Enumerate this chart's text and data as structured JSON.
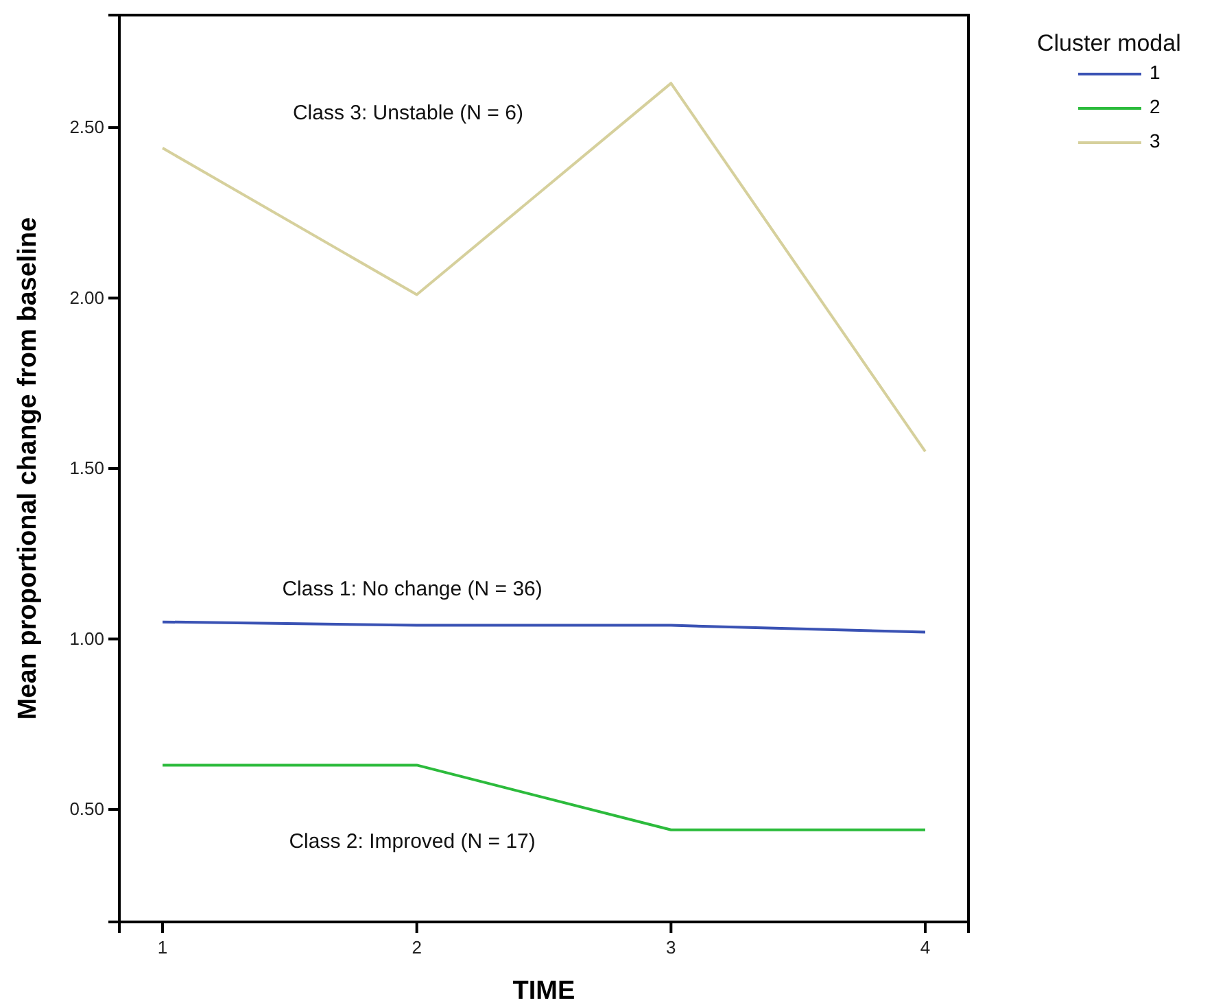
{
  "chart_data": {
    "type": "line",
    "xlabel": "TIME",
    "ylabel": "Mean proportional change from baseline",
    "legend_title": "Cluster modal",
    "legend": "top right",
    "x": [
      1,
      2,
      3,
      4
    ],
    "series": [
      {
        "name": "1",
        "color": "#3a52b4",
        "values": [
          1.05,
          1.04,
          1.04,
          1.02
        ]
      },
      {
        "name": "2",
        "color": "#2cbb3c",
        "values": [
          0.63,
          0.63,
          0.44,
          0.44
        ]
      },
      {
        "name": "3",
        "color": "#d6d09c",
        "values": [
          2.44,
          2.01,
          2.63,
          1.55
        ]
      }
    ],
    "xlim": [
      0.83,
      4.17
    ],
    "xticks": [
      1,
      2,
      3,
      4
    ],
    "ylim": [
      0.17,
      2.83
    ],
    "yticks": [
      {
        "value": 0.5,
        "label": "0.50"
      },
      {
        "value": 1,
        "label": "1.00"
      },
      {
        "value": 1.5,
        "label": "1.50"
      },
      {
        "value": 2,
        "label": "2.00"
      },
      {
        "value": 2.5,
        "label": "2.50"
      }
    ],
    "grid": false,
    "marker": "none",
    "line_style": "solid",
    "annotations": [
      "Class 3: Unstable (N = 6)",
      "Class 1: No change (N = 36)",
      "Class 2: Improved (N = 17)"
    ]
  }
}
